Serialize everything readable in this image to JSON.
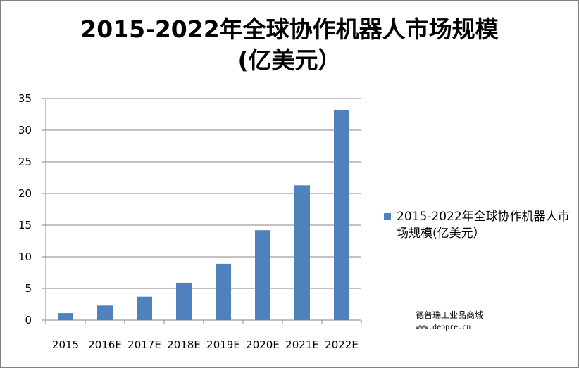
{
  "chart_data": {
    "type": "bar",
    "title": "2015-2022年全球协作机器人市场规模\n(亿美元）",
    "categories": [
      "2015",
      "2016E",
      "2017E",
      "2018E",
      "2019E",
      "2020E",
      "2021E",
      "2022E"
    ],
    "series": [
      {
        "name": "2015-2022年全球协作机器人市场规模(亿美元）",
        "values": [
          1.1,
          2.3,
          3.7,
          5.9,
          8.9,
          14.2,
          21.3,
          33.2
        ]
      }
    ],
    "ylim": [
      0,
      35
    ],
    "yticks": [
      "0",
      "5",
      "10",
      "15",
      "20",
      "25",
      "30",
      "35"
    ],
    "xlabel": "",
    "ylabel": "",
    "grid": true,
    "legend_position": "right",
    "bar_color": "#4F81BD"
  },
  "legend": {
    "label": "2015-2022年全球协作机器人市场规模(亿美元）"
  },
  "watermark": {
    "name": "德普瑞工业品商城",
    "url": "www.deppre.cn"
  }
}
